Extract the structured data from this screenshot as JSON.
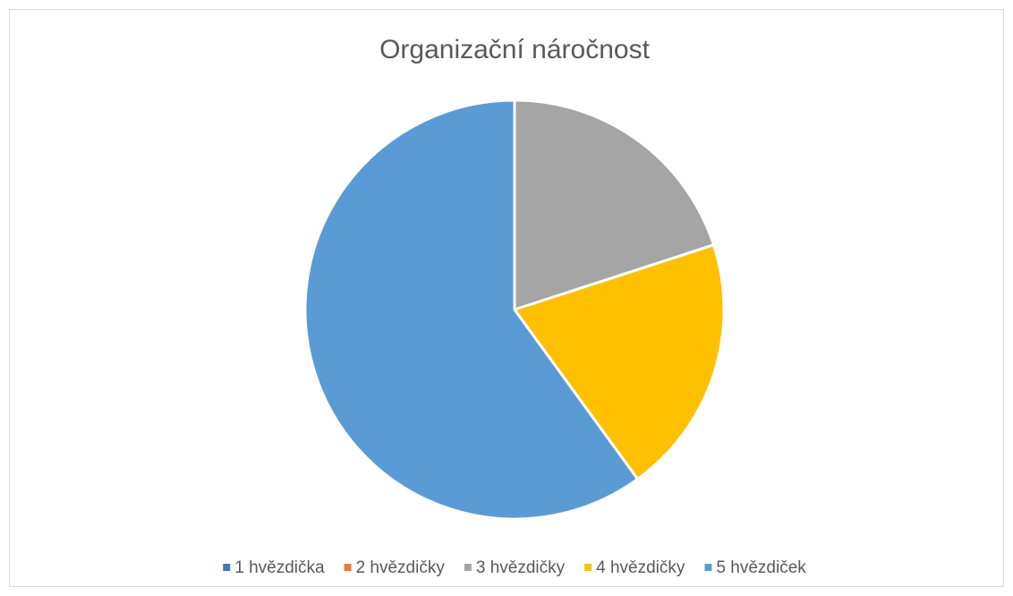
{
  "chart_data": {
    "type": "pie",
    "title": "Organizační náročnost",
    "categories": [
      "1 hvězdička",
      "2 hvězdičky",
      "3 hvězdičky",
      "4 hvězdičky",
      "5 hvězdiček"
    ],
    "values": [
      0,
      0,
      20,
      20,
      60
    ],
    "colors": [
      "#4472c4",
      "#ed7d31",
      "#a5a5a5",
      "#ffc000",
      "#5b9bd5"
    ],
    "legend": "bottom"
  }
}
